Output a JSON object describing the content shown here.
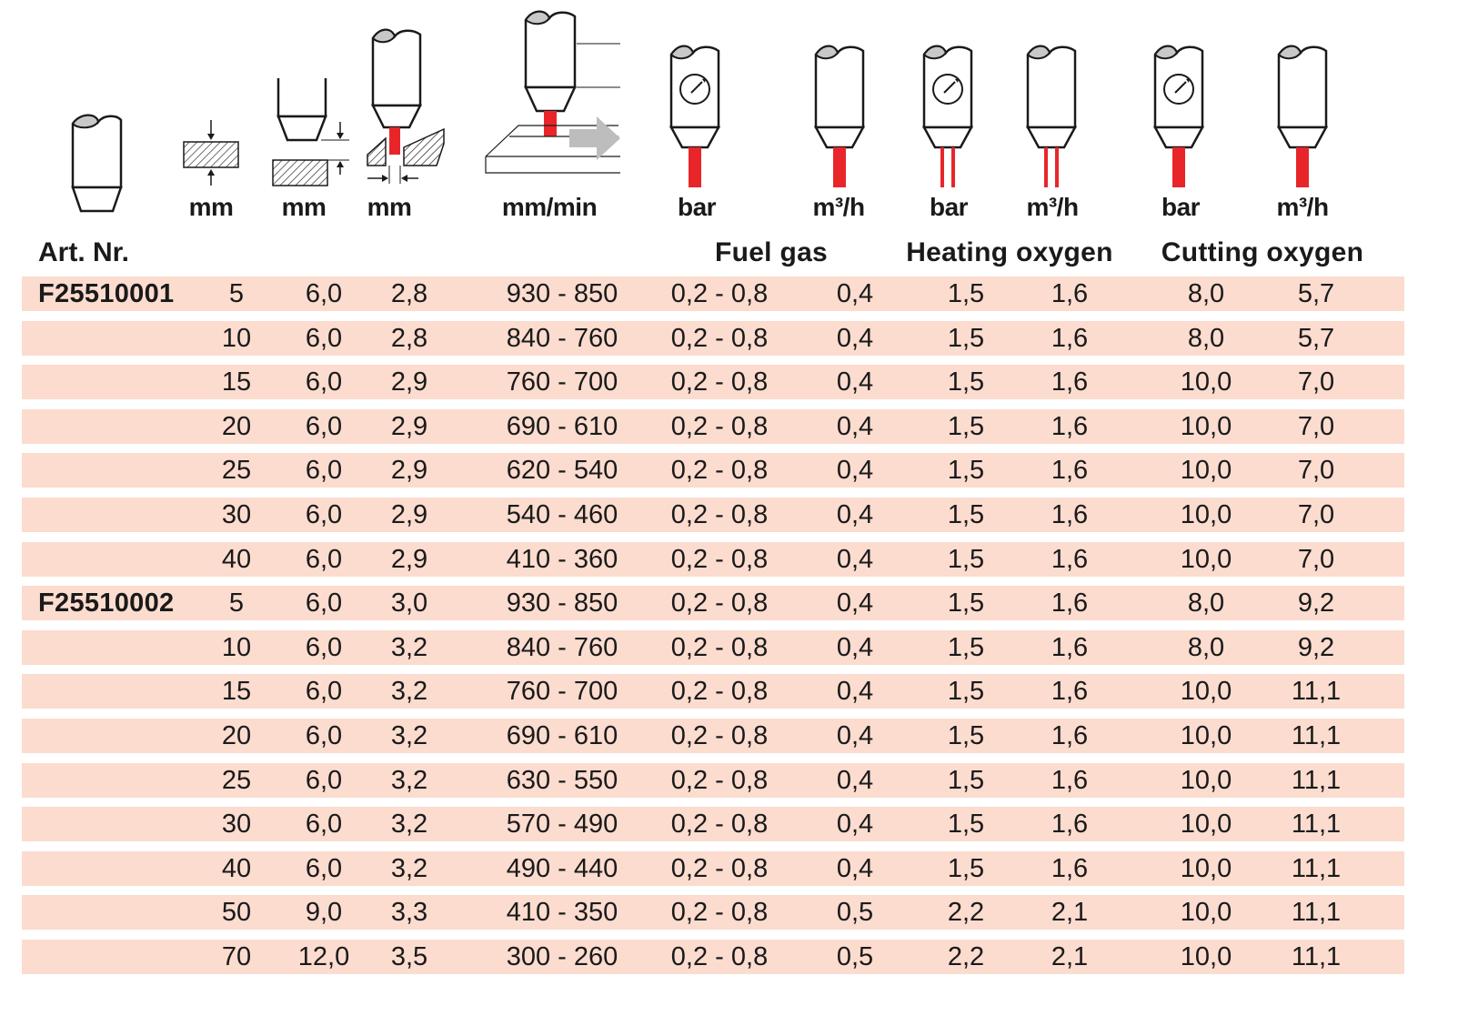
{
  "header": {
    "units": {
      "thickness": "mm",
      "distance": "mm",
      "kerf": "mm",
      "speed": "mm/min",
      "fuel_pressure": "bar",
      "fuel_flow": "m³/h",
      "heating_pressure": "bar",
      "heating_flow": "m³/h",
      "cutting_pressure": "bar",
      "cutting_flow": "m³/h"
    },
    "art_label": "Art. Nr.",
    "groups": {
      "fuel": "Fuel gas",
      "heating": "Heating oxygen",
      "cutting": "Cutting oxygen"
    }
  },
  "rows": [
    {
      "art": "F25510001",
      "thickness": "5",
      "distance": "6,0",
      "kerf": "2,8",
      "speed": "930 - 850",
      "fuel_bar": "0,2 - 0,8",
      "fuel_m3h": "0,4",
      "heat_bar": "1,5",
      "heat_m3h": "1,6",
      "cut_bar": "8,0",
      "cut_m3h": "5,7"
    },
    {
      "art": "",
      "thickness": "10",
      "distance": "6,0",
      "kerf": "2,8",
      "speed": "840 - 760",
      "fuel_bar": "0,2 - 0,8",
      "fuel_m3h": "0,4",
      "heat_bar": "1,5",
      "heat_m3h": "1,6",
      "cut_bar": "8,0",
      "cut_m3h": "5,7"
    },
    {
      "art": "",
      "thickness": "15",
      "distance": "6,0",
      "kerf": "2,9",
      "speed": "760 - 700",
      "fuel_bar": "0,2 - 0,8",
      "fuel_m3h": "0,4",
      "heat_bar": "1,5",
      "heat_m3h": "1,6",
      "cut_bar": "10,0",
      "cut_m3h": "7,0"
    },
    {
      "art": "",
      "thickness": "20",
      "distance": "6,0",
      "kerf": "2,9",
      "speed": "690 - 610",
      "fuel_bar": "0,2 - 0,8",
      "fuel_m3h": "0,4",
      "heat_bar": "1,5",
      "heat_m3h": "1,6",
      "cut_bar": "10,0",
      "cut_m3h": "7,0"
    },
    {
      "art": "",
      "thickness": "25",
      "distance": "6,0",
      "kerf": "2,9",
      "speed": "620 - 540",
      "fuel_bar": "0,2 - 0,8",
      "fuel_m3h": "0,4",
      "heat_bar": "1,5",
      "heat_m3h": "1,6",
      "cut_bar": "10,0",
      "cut_m3h": "7,0"
    },
    {
      "art": "",
      "thickness": "30",
      "distance": "6,0",
      "kerf": "2,9",
      "speed": "540 - 460",
      "fuel_bar": "0,2 - 0,8",
      "fuel_m3h": "0,4",
      "heat_bar": "1,5",
      "heat_m3h": "1,6",
      "cut_bar": "10,0",
      "cut_m3h": "7,0"
    },
    {
      "art": "",
      "thickness": "40",
      "distance": "6,0",
      "kerf": "2,9",
      "speed": "410 - 360",
      "fuel_bar": "0,2 - 0,8",
      "fuel_m3h": "0,4",
      "heat_bar": "1,5",
      "heat_m3h": "1,6",
      "cut_bar": "10,0",
      "cut_m3h": "7,0"
    },
    {
      "art": "F25510002",
      "thickness": "5",
      "distance": "6,0",
      "kerf": "3,0",
      "speed": "930 - 850",
      "fuel_bar": "0,2 - 0,8",
      "fuel_m3h": "0,4",
      "heat_bar": "1,5",
      "heat_m3h": "1,6",
      "cut_bar": "8,0",
      "cut_m3h": "9,2"
    },
    {
      "art": "",
      "thickness": "10",
      "distance": "6,0",
      "kerf": "3,2",
      "speed": "840 - 760",
      "fuel_bar": "0,2 - 0,8",
      "fuel_m3h": "0,4",
      "heat_bar": "1,5",
      "heat_m3h": "1,6",
      "cut_bar": "8,0",
      "cut_m3h": "9,2"
    },
    {
      "art": "",
      "thickness": "15",
      "distance": "6,0",
      "kerf": "3,2",
      "speed": "760 - 700",
      "fuel_bar": "0,2 - 0,8",
      "fuel_m3h": "0,4",
      "heat_bar": "1,5",
      "heat_m3h": "1,6",
      "cut_bar": "10,0",
      "cut_m3h": "11,1"
    },
    {
      "art": "",
      "thickness": "20",
      "distance": "6,0",
      "kerf": "3,2",
      "speed": "690 - 610",
      "fuel_bar": "0,2 - 0,8",
      "fuel_m3h": "0,4",
      "heat_bar": "1,5",
      "heat_m3h": "1,6",
      "cut_bar": "10,0",
      "cut_m3h": "11,1"
    },
    {
      "art": "",
      "thickness": "25",
      "distance": "6,0",
      "kerf": "3,2",
      "speed": "630 - 550",
      "fuel_bar": "0,2 - 0,8",
      "fuel_m3h": "0,4",
      "heat_bar": "1,5",
      "heat_m3h": "1,6",
      "cut_bar": "10,0",
      "cut_m3h": "11,1"
    },
    {
      "art": "",
      "thickness": "30",
      "distance": "6,0",
      "kerf": "3,2",
      "speed": "570 - 490",
      "fuel_bar": "0,2 - 0,8",
      "fuel_m3h": "0,4",
      "heat_bar": "1,5",
      "heat_m3h": "1,6",
      "cut_bar": "10,0",
      "cut_m3h": "11,1"
    },
    {
      "art": "",
      "thickness": "40",
      "distance": "6,0",
      "kerf": "3,2",
      "speed": "490 - 440",
      "fuel_bar": "0,2 - 0,8",
      "fuel_m3h": "0,4",
      "heat_bar": "1,5",
      "heat_m3h": "1,6",
      "cut_bar": "10,0",
      "cut_m3h": "11,1"
    },
    {
      "art": "",
      "thickness": "50",
      "distance": "9,0",
      "kerf": "3,3",
      "speed": "410 - 350",
      "fuel_bar": "0,2 - 0,8",
      "fuel_m3h": "0,5",
      "heat_bar": "2,2",
      "heat_m3h": "2,1",
      "cut_bar": "10,0",
      "cut_m3h": "11,1"
    },
    {
      "art": "",
      "thickness": "70",
      "distance": "12,0",
      "kerf": "3,5",
      "speed": "300 - 260",
      "fuel_bar": "0,2 - 0,8",
      "fuel_m3h": "0,5",
      "heat_bar": "2,2",
      "heat_m3h": "2,1",
      "cut_bar": "10,0",
      "cut_m3h": "11,1"
    }
  ]
}
